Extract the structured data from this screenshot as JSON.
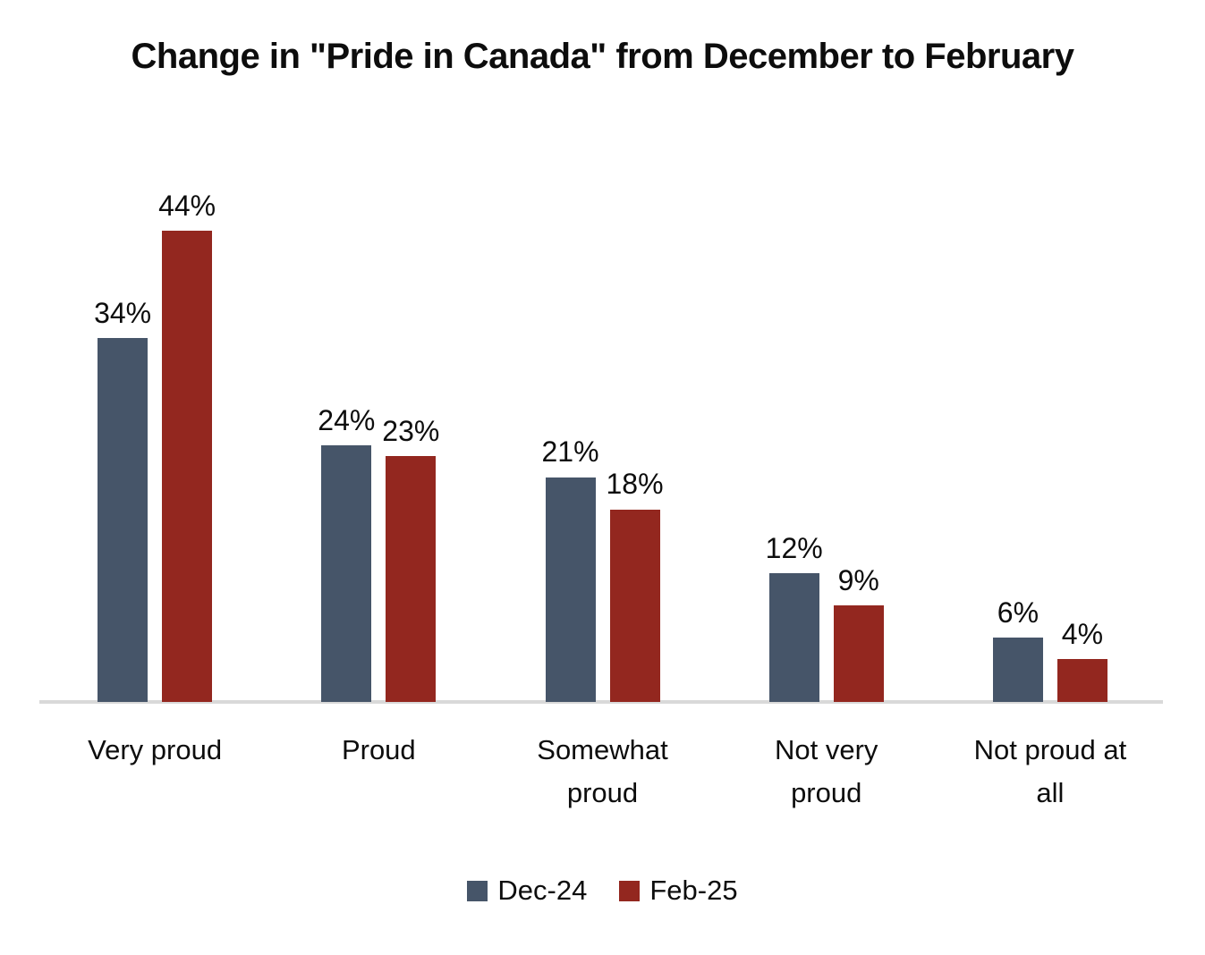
{
  "title": "Change in \"Pride in Canada\" from December to February",
  "colors": {
    "dec_24_series": "#465569",
    "feb_25_series": "#93271F",
    "axis_line": "#D9D9D9",
    "text": "#0D0D0D",
    "background": "#FFFFFF"
  },
  "legend": {
    "position": "bottom",
    "items": [
      {
        "label": "Dec-24",
        "color": "#465569"
      },
      {
        "label": "Feb-25",
        "color": "#93271F"
      }
    ]
  },
  "chart_data": {
    "type": "bar",
    "title": "Change in \"Pride in Canada\" from December to February",
    "categories": [
      "Very proud",
      "Proud",
      "Somewhat proud",
      "Not very proud",
      "Not proud at all"
    ],
    "category_label_lines": [
      [
        "Very proud"
      ],
      [
        "Proud"
      ],
      [
        "Somewhat",
        "proud"
      ],
      [
        "Not very",
        "proud"
      ],
      [
        "Not proud at",
        "all"
      ]
    ],
    "series": [
      {
        "name": "Dec-24",
        "color": "#465569",
        "values": [
          34,
          24,
          21,
          12,
          6
        ],
        "data_labels": [
          "34%",
          "24%",
          "21%",
          "12%",
          "6%"
        ]
      },
      {
        "name": "Feb-25",
        "color": "#93271F",
        "values": [
          44,
          23,
          18,
          9,
          4
        ],
        "data_labels": [
          "44%",
          "23%",
          "18%",
          "9%",
          "4%"
        ]
      }
    ],
    "unit": "%",
    "ylim": [
      0,
      65.6
    ],
    "y_axis_visible": false,
    "grid": false,
    "data_label_position": "outside-end",
    "legend_position": "bottom"
  }
}
